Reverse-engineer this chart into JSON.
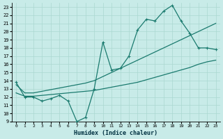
{
  "bg_color": "#c8ebe8",
  "line_color": "#1a7a6e",
  "grid_color": "#aad8d0",
  "xlabel": "Humidex (Indice chaleur)",
  "xlim": [
    -0.5,
    23.5
  ],
  "ylim": [
    9,
    23.5
  ],
  "xticks": [
    0,
    1,
    2,
    3,
    4,
    5,
    6,
    7,
    8,
    9,
    10,
    11,
    12,
    13,
    14,
    15,
    16,
    17,
    18,
    19,
    20,
    21,
    22,
    23
  ],
  "yticks": [
    9,
    10,
    11,
    12,
    13,
    14,
    15,
    16,
    17,
    18,
    19,
    20,
    21,
    22,
    23
  ],
  "zigzag_x": [
    0,
    1,
    2,
    3,
    4,
    5,
    6,
    7,
    8,
    9,
    10,
    11,
    12,
    13,
    14,
    15,
    16,
    17,
    18,
    19,
    20,
    21,
    22,
    23
  ],
  "zigzag_y": [
    13.8,
    12.0,
    12.0,
    11.5,
    11.8,
    12.2,
    11.5,
    9.0,
    9.5,
    13.0,
    18.7,
    15.3,
    15.5,
    17.0,
    20.2,
    21.5,
    21.3,
    22.5,
    23.2,
    21.3,
    19.8,
    18.0,
    18.0,
    17.8
  ],
  "upper_line_x": [
    0,
    1,
    2,
    3,
    4,
    5,
    6,
    7,
    8,
    9,
    10,
    11,
    12,
    13,
    14,
    15,
    16,
    17,
    18,
    19,
    20,
    21,
    22,
    23
  ],
  "upper_line_y": [
    13.5,
    12.5,
    12.5,
    12.7,
    12.9,
    13.1,
    13.3,
    13.5,
    13.7,
    14.0,
    14.5,
    15.0,
    15.5,
    16.0,
    16.5,
    17.0,
    17.5,
    18.0,
    18.5,
    19.0,
    19.5,
    20.0,
    20.5,
    21.0
  ],
  "lower_line_x": [
    0,
    1,
    2,
    3,
    4,
    5,
    6,
    7,
    8,
    9,
    10,
    11,
    12,
    13,
    14,
    15,
    16,
    17,
    18,
    19,
    20,
    21,
    22,
    23
  ],
  "lower_line_y": [
    12.5,
    12.1,
    12.1,
    12.2,
    12.3,
    12.4,
    12.5,
    12.6,
    12.7,
    12.8,
    13.0,
    13.2,
    13.4,
    13.6,
    13.8,
    14.1,
    14.4,
    14.7,
    15.0,
    15.3,
    15.6,
    16.0,
    16.3,
    16.5
  ]
}
